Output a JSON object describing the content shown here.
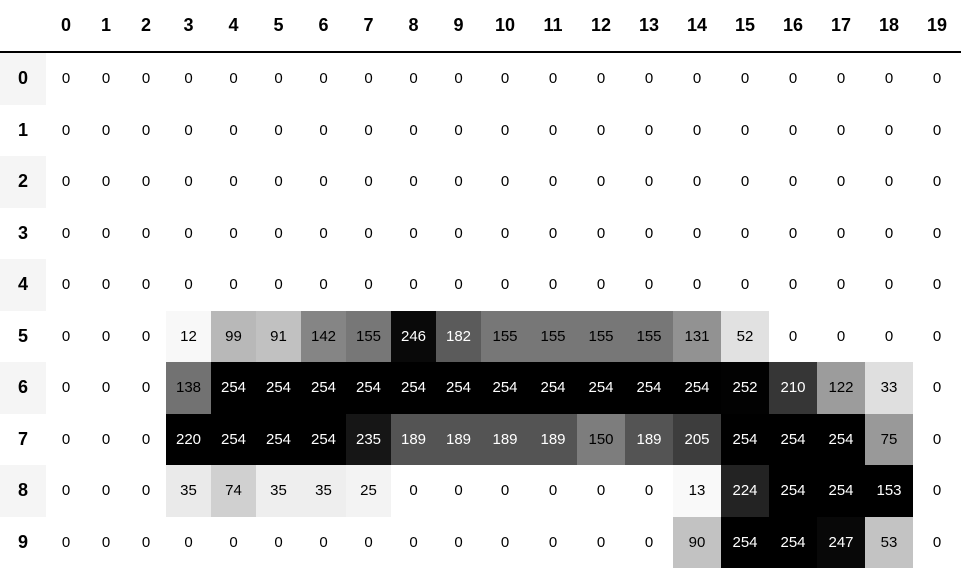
{
  "chart_data": {
    "type": "heatmap",
    "title": "",
    "columns": [
      "0",
      "1",
      "2",
      "3",
      "4",
      "5",
      "6",
      "7",
      "8",
      "9",
      "10",
      "11",
      "12",
      "13",
      "14",
      "15",
      "16",
      "17",
      "18",
      "19"
    ],
    "rows": [
      "0",
      "1",
      "2",
      "3",
      "4",
      "5",
      "6",
      "7",
      "8",
      "9"
    ],
    "values": [
      [
        0,
        0,
        0,
        0,
        0,
        0,
        0,
        0,
        0,
        0,
        0,
        0,
        0,
        0,
        0,
        0,
        0,
        0,
        0,
        0
      ],
      [
        0,
        0,
        0,
        0,
        0,
        0,
        0,
        0,
        0,
        0,
        0,
        0,
        0,
        0,
        0,
        0,
        0,
        0,
        0,
        0
      ],
      [
        0,
        0,
        0,
        0,
        0,
        0,
        0,
        0,
        0,
        0,
        0,
        0,
        0,
        0,
        0,
        0,
        0,
        0,
        0,
        0
      ],
      [
        0,
        0,
        0,
        0,
        0,
        0,
        0,
        0,
        0,
        0,
        0,
        0,
        0,
        0,
        0,
        0,
        0,
        0,
        0,
        0
      ],
      [
        0,
        0,
        0,
        0,
        0,
        0,
        0,
        0,
        0,
        0,
        0,
        0,
        0,
        0,
        0,
        0,
        0,
        0,
        0,
        0
      ],
      [
        0,
        0,
        0,
        12,
        99,
        91,
        142,
        155,
        246,
        182,
        155,
        155,
        155,
        155,
        131,
        52,
        0,
        0,
        0,
        0
      ],
      [
        0,
        0,
        0,
        138,
        254,
        254,
        254,
        254,
        254,
        254,
        254,
        254,
        254,
        254,
        254,
        252,
        210,
        122,
        33,
        0
      ],
      [
        0,
        0,
        0,
        220,
        254,
        254,
        254,
        235,
        189,
        189,
        189,
        189,
        150,
        189,
        205,
        254,
        254,
        254,
        75,
        0
      ],
      [
        0,
        0,
        0,
        35,
        74,
        35,
        35,
        25,
        0,
        0,
        0,
        0,
        0,
        0,
        13,
        224,
        254,
        254,
        153,
        0
      ],
      [
        0,
        0,
        0,
        0,
        0,
        0,
        0,
        0,
        0,
        0,
        0,
        0,
        0,
        0,
        90,
        254,
        254,
        247,
        53,
        0
      ]
    ],
    "value_range": [
      0,
      254
    ],
    "colormap": "Greys",
    "normalization": "per-column",
    "legend": "none",
    "grid": "off"
  },
  "style_data": {
    "greys_stops": [
      255,
      240,
      217,
      189,
      150,
      115,
      82,
      37,
      0
    ],
    "white_text_gray_threshold": 108,
    "index_stripe_color": "#f5f5f5",
    "header_rule_color": "#000000",
    "text_color_dark": "#000000",
    "text_color_light": "#ffffff",
    "background_color": "#ffffff",
    "striped_row_indices": [
      0,
      2,
      4,
      6,
      8
    ],
    "col_width_index": 46,
    "col_widths_narrow": 40,
    "col_widths_mid": 45,
    "col_widths_wide": 48
  }
}
